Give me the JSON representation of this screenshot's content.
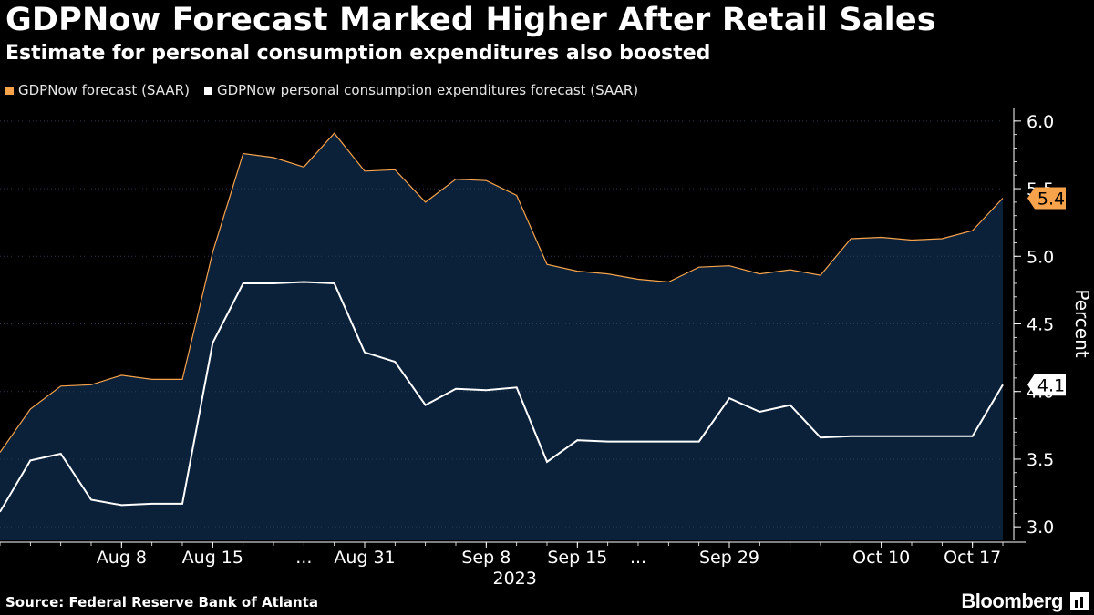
{
  "header": {
    "title": "GDPNow Forecast Marked Higher After Retail Sales",
    "subtitle": "Estimate for personal consumption expenditures also boosted"
  },
  "legend": [
    {
      "label": "GDPNow forecast (SAAR)",
      "color": "#f6a34c"
    },
    {
      "label": "GDPNow personal consumption expenditures forecast (SAAR)",
      "color": "#ffffff"
    }
  ],
  "footer": {
    "source": "Source: Federal Reserve Bank of Atlanta",
    "brand": "Bloomberg"
  },
  "chart_data": {
    "type": "line",
    "title": "GDPNow Forecast Marked Higher After Retail Sales",
    "ylabel": "Percent",
    "xlabel": "2023",
    "ylim": [
      2.9,
      6.1
    ],
    "yticks": [
      3.0,
      3.5,
      4.0,
      4.5,
      5.0,
      5.5,
      6.0
    ],
    "ytick_labels": [
      "3.0",
      "3.5",
      "4.0",
      "4.5",
      "5.0",
      "5.5",
      "6.0"
    ],
    "x_count": 34,
    "x_ticks": [
      {
        "index": 4,
        "label": "Aug 8"
      },
      {
        "index": 7,
        "label": "Aug 15"
      },
      {
        "index": 10,
        "label": "..."
      },
      {
        "index": 12,
        "label": "Aug 31"
      },
      {
        "index": 16,
        "label": "Sep 8"
      },
      {
        "index": 19,
        "label": "Sep 15"
      },
      {
        "index": 21,
        "label": "..."
      },
      {
        "index": 24,
        "label": "Sep 29"
      },
      {
        "index": 29,
        "label": "Oct 10"
      },
      {
        "index": 32,
        "label": "Oct 17"
      }
    ],
    "year_label": "2023",
    "year_label_index": 17,
    "series": [
      {
        "name": "GDPNow forecast (SAAR)",
        "color": "#f6a34c",
        "fill": "#0b2039",
        "values": [
          3.55,
          3.87,
          4.04,
          4.05,
          4.12,
          4.09,
          4.09,
          5.03,
          5.76,
          5.73,
          5.66,
          5.91,
          5.63,
          5.64,
          5.4,
          5.57,
          5.56,
          5.45,
          4.94,
          4.89,
          4.87,
          4.83,
          4.81,
          4.92,
          4.93,
          4.87,
          4.9,
          4.86,
          5.13,
          5.14,
          5.12,
          5.13,
          5.19,
          5.43
        ],
        "end_label": "5.4"
      },
      {
        "name": "GDPNow personal consumption expenditures forecast (SAAR)",
        "color": "#ffffff",
        "values": [
          3.11,
          3.49,
          3.54,
          3.2,
          3.16,
          3.17,
          3.17,
          4.36,
          4.8,
          4.8,
          4.81,
          4.8,
          4.29,
          4.22,
          3.9,
          4.02,
          4.01,
          4.03,
          3.48,
          3.64,
          3.63,
          3.63,
          3.63,
          3.63,
          3.95,
          3.85,
          3.9,
          3.66,
          3.67,
          3.67,
          3.67,
          3.67,
          3.67,
          4.05
        ],
        "end_label": "4.1"
      }
    ]
  }
}
